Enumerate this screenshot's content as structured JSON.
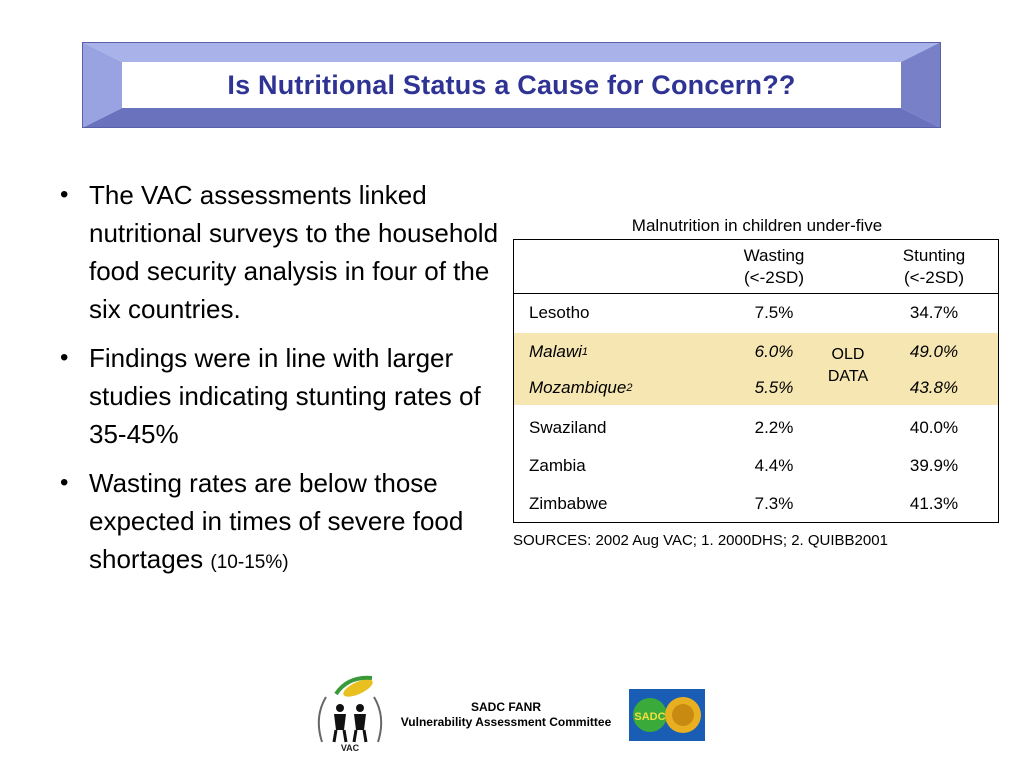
{
  "title": "Is Nutritional Status a Cause for Concern??",
  "bullets": [
    {
      "text": "The VAC assessments linked nutritional surveys to the household food security analysis in four of the six countries.",
      "small": ""
    },
    {
      "text": "Findings were in line with larger studies indicating stunting rates of 35-45%",
      "small": ""
    },
    {
      "text": "Wasting rates are below those expected in times of severe food shortages ",
      "small": "(10-15%)"
    }
  ],
  "table": {
    "caption": "Malnutrition in children under-five",
    "headers": {
      "wasting_1": "Wasting",
      "wasting_2": "(<-2SD)",
      "stunting_1": "Stunting",
      "stunting_2": "(<-2SD)"
    },
    "rows": [
      {
        "country": "Lesotho",
        "sup": "",
        "wasting": "7.5%",
        "stunting": "34.7%"
      },
      {
        "country": "Malawi",
        "sup": "1",
        "wasting": "6.0%",
        "stunting": "49.0%"
      },
      {
        "country": "Mozambique",
        "sup": "2",
        "wasting": "5.5%",
        "stunting": "43.8%"
      },
      {
        "country": "Swaziland",
        "sup": "",
        "wasting": "2.2%",
        "stunting": "40.0%"
      },
      {
        "country": "Zambia",
        "sup": "",
        "wasting": "4.4%",
        "stunting": "39.9%"
      },
      {
        "country": "Zimbabwe",
        "sup": "",
        "wasting": "7.3%",
        "stunting": "41.3%"
      }
    ],
    "old_data_1": "OLD",
    "old_data_2": "DATA"
  },
  "sources": "SOURCES:  2002 Aug VAC; 1. 2000DHS; 2. QUIBB2001",
  "footer": {
    "line1": "SADC FANR",
    "line2": "Vulnerability Assessment Committee",
    "vac_logo_text": "VAC",
    "sadc_logo_text": "SADC"
  },
  "colors": {
    "title": "#2f3494",
    "frame": "#8c96dc",
    "highlight": "#f5e6b2"
  }
}
